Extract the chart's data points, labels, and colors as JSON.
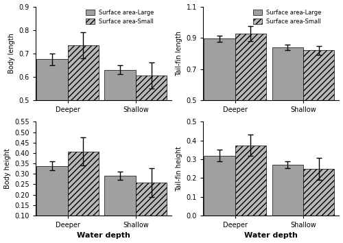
{
  "subplots": [
    {
      "ylabel": "Body length",
      "xlabel": "",
      "ylim": [
        0.5,
        0.9
      ],
      "yticks": [
        0.5,
        0.6,
        0.7,
        0.8,
        0.9
      ],
      "categories": [
        "Deeper",
        "Shallow"
      ],
      "large_means": [
        0.675,
        0.63
      ],
      "small_means": [
        0.735,
        0.605
      ],
      "large_errors": [
        0.025,
        0.02
      ],
      "small_errors": [
        0.055,
        0.055
      ]
    },
    {
      "ylabel": "Tail-fin length",
      "xlabel": "",
      "ylim": [
        0.5,
        1.1
      ],
      "yticks": [
        0.5,
        0.7,
        0.9,
        1.1
      ],
      "categories": [
        "Deeper",
        "Shallow"
      ],
      "large_means": [
        0.895,
        0.84
      ],
      "small_means": [
        0.925,
        0.82
      ],
      "large_errors": [
        0.02,
        0.018
      ],
      "small_errors": [
        0.048,
        0.028
      ]
    },
    {
      "ylabel": "Body height",
      "xlabel": "Water depth",
      "ylim": [
        0.1,
        0.55
      ],
      "yticks": [
        0.1,
        0.15,
        0.2,
        0.25,
        0.3,
        0.35,
        0.4,
        0.45,
        0.5,
        0.55
      ],
      "categories": [
        "Deeper",
        "Shallow"
      ],
      "large_means": [
        0.338,
        0.29
      ],
      "small_means": [
        0.407,
        0.258
      ],
      "large_errors": [
        0.022,
        0.02
      ],
      "small_errors": [
        0.068,
        0.068
      ]
    },
    {
      "ylabel": "Tail-fin height",
      "xlabel": "Water depth",
      "ylim": [
        0.0,
        0.5
      ],
      "yticks": [
        0.0,
        0.1,
        0.2,
        0.3,
        0.4,
        0.5
      ],
      "categories": [
        "Deeper",
        "Shallow"
      ],
      "large_means": [
        0.32,
        0.27
      ],
      "small_means": [
        0.375,
        0.248
      ],
      "large_errors": [
        0.03,
        0.018
      ],
      "small_errors": [
        0.055,
        0.058
      ]
    }
  ],
  "color_large": "#a0a0a0",
  "color_small": "#b8b8b8",
  "hatch_small": "////",
  "legend_labels": [
    "Surface area-Large",
    "Surface area-Small"
  ],
  "bar_width": 0.32,
  "x_positions": [
    0.38,
    1.08
  ]
}
